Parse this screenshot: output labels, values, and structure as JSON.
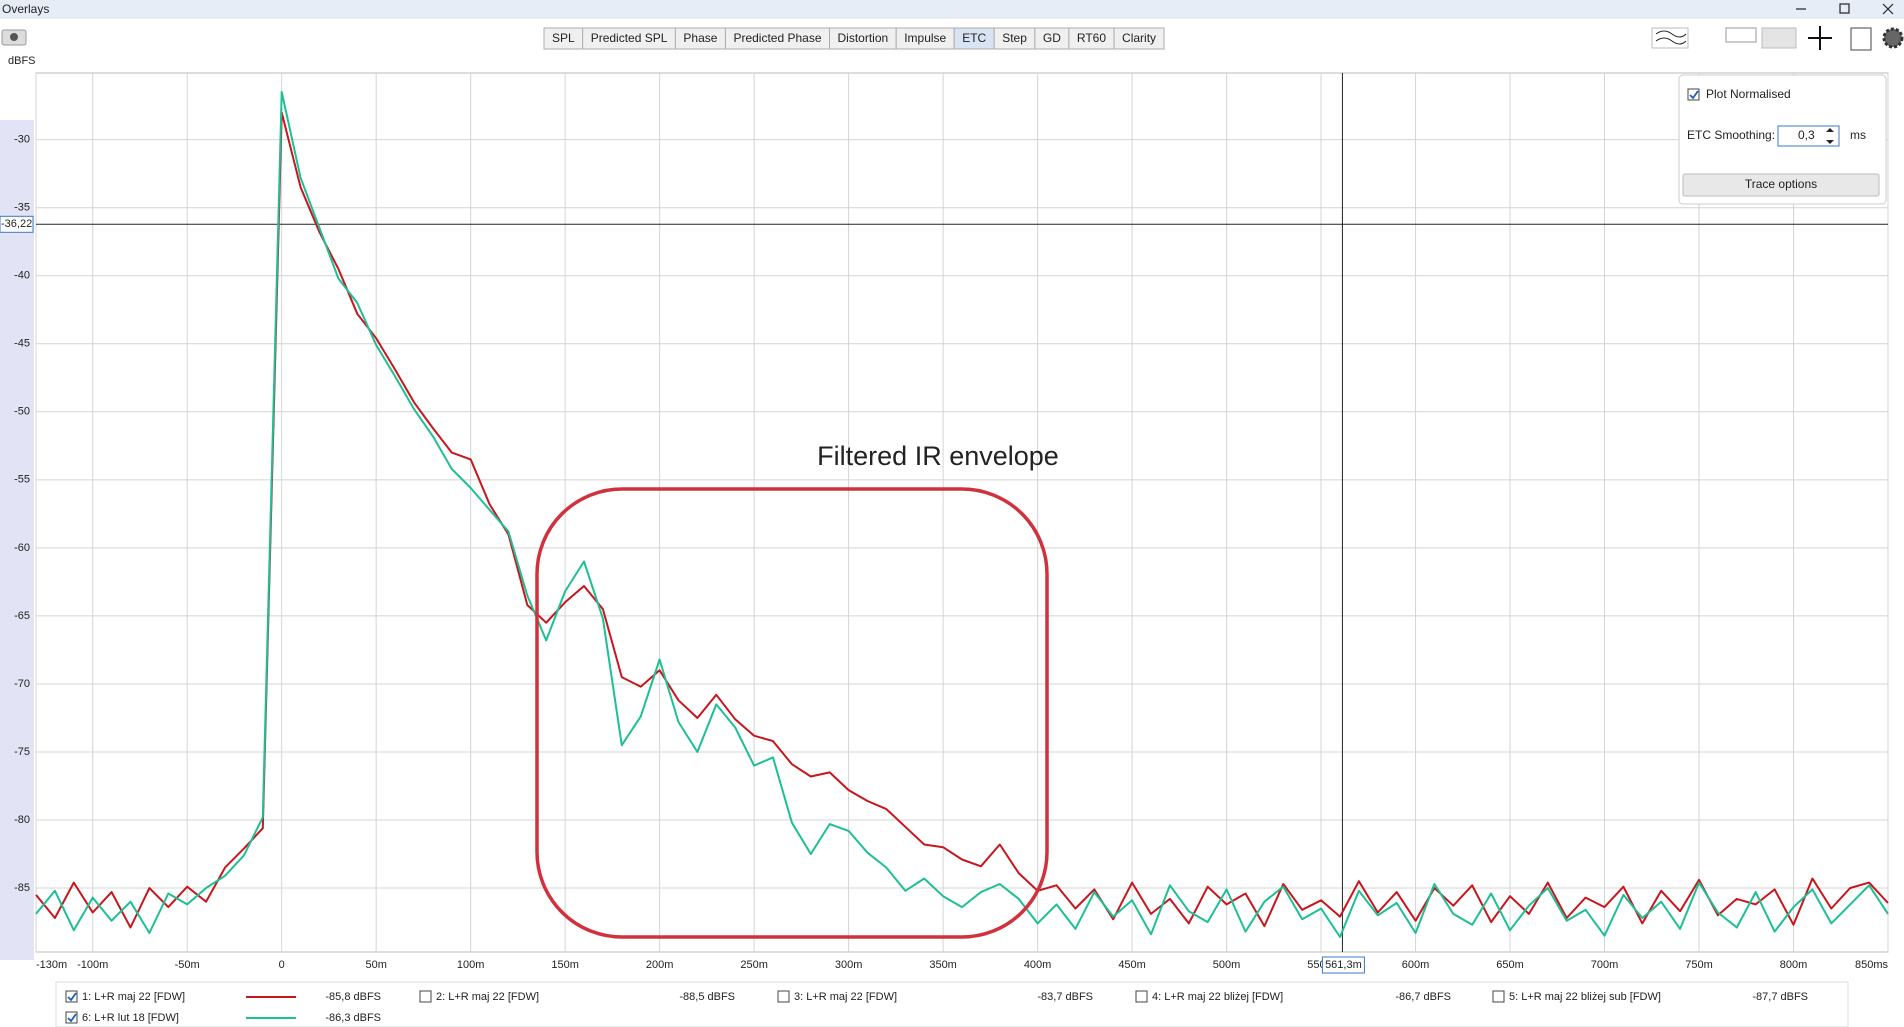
{
  "window": {
    "title": "Overlays"
  },
  "toolbar": {
    "tabs": [
      "SPL",
      "Predicted SPL",
      "Phase",
      "Predicted Phase",
      "Distortion",
      "Impulse",
      "ETC",
      "Step",
      "GD",
      "RT60",
      "Clarity"
    ],
    "active": "ETC"
  },
  "options_panel": {
    "plot_normalised": "Plot Normalised",
    "plot_normalised_checked": true,
    "smoothing_label": "ETC Smoothing:",
    "smoothing_value": "0,3",
    "smoothing_unit": "ms",
    "trace_options": "Trace options"
  },
  "chart_data": {
    "type": "line",
    "y_label": "dBFS",
    "x": [
      -130,
      -120,
      -110,
      -100,
      -90,
      -80,
      -70,
      -60,
      -50,
      -40,
      -30,
      -20,
      -10,
      0,
      10,
      20,
      30,
      40,
      50,
      60,
      70,
      80,
      90,
      100,
      110,
      120,
      130,
      140,
      150,
      160,
      170,
      180,
      190,
      200,
      210,
      220,
      230,
      240,
      250,
      260,
      270,
      280,
      290,
      300,
      310,
      320,
      330,
      340,
      350,
      360,
      370,
      380,
      390,
      400,
      410,
      420,
      430,
      440,
      450,
      460,
      470,
      480,
      490,
      500,
      510,
      520,
      530,
      540,
      550,
      560,
      570,
      580,
      590,
      600,
      610,
      620,
      630,
      640,
      650,
      660,
      670,
      680,
      690,
      700,
      710,
      720,
      730,
      740,
      750,
      760,
      770,
      780,
      790,
      800,
      810,
      820,
      830,
      840,
      850
    ],
    "xlim": [
      -130,
      850
    ],
    "xticks": [
      {
        "value": -130,
        "label": "-130m"
      },
      {
        "value": -100,
        "label": "-100m"
      },
      {
        "value": -50,
        "label": "-50m"
      },
      0,
      {
        "value": 50,
        "label": "50m"
      },
      {
        "value": 100,
        "label": "100m"
      },
      {
        "value": 150,
        "label": "150m"
      },
      {
        "value": 200,
        "label": "200m"
      },
      {
        "value": 250,
        "label": "250m"
      },
      {
        "value": 300,
        "label": "300m"
      },
      {
        "value": 350,
        "label": "350m"
      },
      {
        "value": 400,
        "label": "400m"
      },
      {
        "value": 450,
        "label": "450m"
      },
      {
        "value": 500,
        "label": "500m"
      },
      {
        "value": 550,
        "label": "550m"
      },
      {
        "value": 600,
        "label": "600m"
      },
      {
        "value": 650,
        "label": "650m"
      },
      {
        "value": 700,
        "label": "700m"
      },
      {
        "value": 750,
        "label": "750m"
      },
      {
        "value": 800,
        "label": "800m"
      },
      {
        "value": 850,
        "label": "850ms"
      }
    ],
    "ylim": [
      -89.7,
      -25.1
    ],
    "yticks": [
      -30,
      -35,
      -40,
      -45,
      -50,
      -55,
      -60,
      -65,
      -70,
      -75,
      -80,
      -85
    ],
    "grid": true,
    "series": [
      {
        "name": "1: L+R maj 22 [FDW]",
        "color": "#c8161d",
        "checked": true,
        "readout": "-85,8 dBFS",
        "values": [
          -85.5,
          -87.2,
          -84.6,
          -86.8,
          -85.3,
          -87.9,
          -85.0,
          -86.4,
          -84.9,
          -86.0,
          -83.5,
          -82.1,
          -80.6,
          -28.0,
          -33.5,
          -36.8,
          -39.5,
          -42.8,
          -44.6,
          -46.9,
          -49.3,
          -51.2,
          -53.0,
          -53.5,
          -56.8,
          -59.0,
          -64.2,
          -65.5,
          -64.0,
          -62.8,
          -64.5,
          -69.5,
          -70.2,
          -69.0,
          -71.2,
          -72.5,
          -70.8,
          -72.6,
          -73.8,
          -74.2,
          -75.9,
          -76.8,
          -76.5,
          -77.8,
          -78.6,
          -79.2,
          -80.5,
          -81.8,
          -82.0,
          -82.9,
          -83.4,
          -81.8,
          -83.9,
          -85.2,
          -84.8,
          -86.5,
          -85.1,
          -87.3,
          -84.6,
          -86.9,
          -85.8,
          -87.6,
          -84.9,
          -86.2,
          -85.4,
          -87.8,
          -84.7,
          -86.6,
          -85.9,
          -87.1,
          -84.5,
          -86.8,
          -85.3,
          -87.4,
          -85.0,
          -86.3,
          -84.8,
          -87.5,
          -85.6,
          -86.9,
          -84.6,
          -87.2,
          -85.7,
          -86.4,
          -84.9,
          -87.6,
          -85.2,
          -86.7,
          -84.4,
          -87.0,
          -85.8,
          -86.2,
          -85.1,
          -87.7,
          -84.3,
          -86.5,
          -85.0,
          -84.6,
          -86.1
        ]
      },
      {
        "name": "6: L+R lut 18 [FDW]",
        "color": "#1dbf94",
        "checked": true,
        "readout": "-86,3 dBFS",
        "values": [
          -86.9,
          -85.2,
          -88.1,
          -85.7,
          -87.4,
          -86.0,
          -88.3,
          -85.4,
          -86.2,
          -85.0,
          -84.1,
          -82.6,
          -79.8,
          -26.5,
          -32.8,
          -36.5,
          -40.2,
          -42.0,
          -45.1,
          -47.4,
          -49.8,
          -51.8,
          -54.2,
          -55.6,
          -57.2,
          -58.8,
          -63.5,
          -66.8,
          -63.2,
          -61.0,
          -65.2,
          -74.5,
          -72.4,
          -68.2,
          -72.8,
          -75.0,
          -71.5,
          -73.2,
          -76.0,
          -75.4,
          -80.2,
          -82.5,
          -80.3,
          -80.8,
          -82.4,
          -83.5,
          -85.2,
          -84.3,
          -85.6,
          -86.4,
          -85.3,
          -84.7,
          -85.8,
          -87.6,
          -86.2,
          -88.0,
          -85.3,
          -87.1,
          -85.9,
          -88.4,
          -84.8,
          -86.7,
          -87.5,
          -85.1,
          -88.2,
          -86.0,
          -84.9,
          -87.3,
          -86.5,
          -88.6,
          -85.2,
          -87.0,
          -86.1,
          -88.3,
          -84.7,
          -86.9,
          -87.7,
          -85.4,
          -88.1,
          -86.3,
          -85.0,
          -87.4,
          -86.6,
          -88.5,
          -85.5,
          -87.2,
          -86.0,
          -88.0,
          -84.6,
          -86.8,
          -87.9,
          -85.3,
          -88.2,
          -86.4,
          -85.1,
          -87.6,
          -86.2,
          -84.8,
          -86.9
        ]
      }
    ],
    "cursor": {
      "x": 561.3,
      "x_label": "561,3m",
      "y": -36.22,
      "y_label": "-36,22"
    },
    "annotation": {
      "text": "Filtered IR envelope",
      "color": "#d0313d"
    }
  },
  "hidden_traces": [
    {
      "name": "2: L+R maj 22 [FDW]",
      "color": "#2f8f62",
      "checked": false,
      "readout": "-88,5 dBFS"
    },
    {
      "name": "3: L+R maj 22 [FDW]",
      "color": "#2a6fb8",
      "checked": false,
      "readout": "-83,7 dBFS"
    },
    {
      "name": "4: L+R maj 22 bliżej [FDW]",
      "color": "#d98a12",
      "checked": false,
      "readout": "-86,7 dBFS"
    },
    {
      "name": "5: L+R maj 22 bliżej sub [FDW]",
      "color": "#cfa114",
      "checked": false,
      "readout": "-87,7 dBFS"
    }
  ]
}
